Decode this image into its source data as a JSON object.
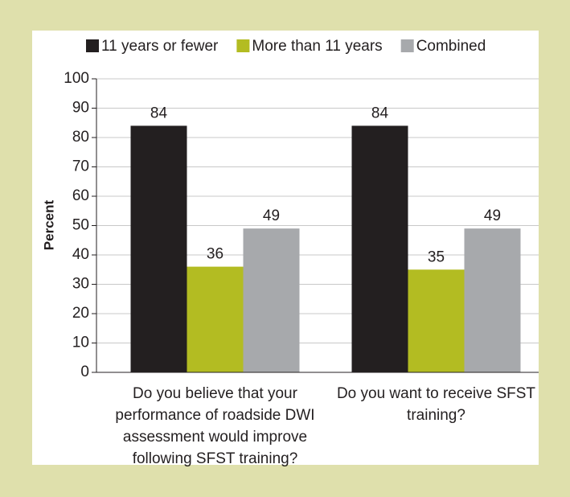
{
  "chart_data": {
    "type": "bar",
    "categories": [
      "Do you believe that your performance of roadside DWI assessment would improve following SFST training?",
      "Do you want to receive SFST training?"
    ],
    "series": [
      {
        "name": "11 years or fewer",
        "color": "#231f20",
        "values": [
          84,
          84
        ]
      },
      {
        "name": "More than 11 years",
        "color": "#b3bc22",
        "values": [
          36,
          35
        ]
      },
      {
        "name": "Combined",
        "color": "#a7a9ac",
        "values": [
          49,
          49
        ]
      }
    ],
    "y_label": "Percent",
    "ylim": [
      0,
      100
    ],
    "yticks": [
      0,
      10,
      20,
      30,
      40,
      50,
      60,
      70,
      80,
      90,
      100
    ],
    "grid": true,
    "legend": "top"
  }
}
